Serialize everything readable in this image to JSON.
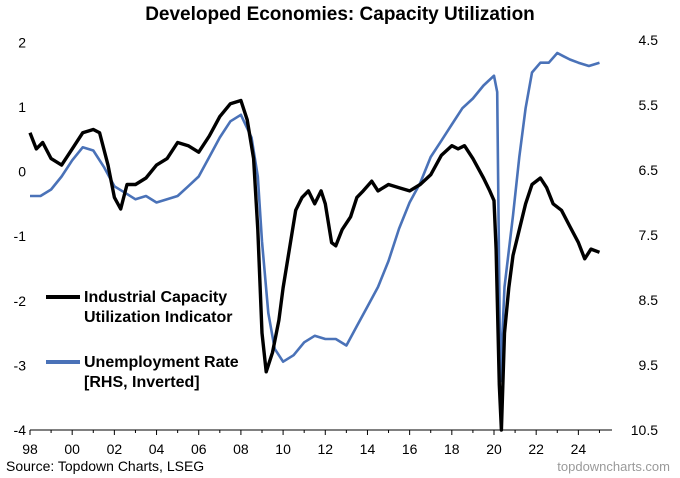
{
  "chart_data": {
    "type": "line",
    "title": "Developed Economies: Capacity Utilization",
    "source": "Source: Topdown Charts, LSEG",
    "watermark": "topdowncharts.com",
    "x_ticks": [
      "98",
      "00",
      "02",
      "04",
      "06",
      "08",
      "10",
      "12",
      "14",
      "16",
      "18",
      "20",
      "22",
      "24"
    ],
    "x_range": [
      1998.0,
      2025.5
    ],
    "y_left_ticks": [
      "2",
      "1",
      "0",
      "-1",
      "-2",
      "-3",
      "-4"
    ],
    "y_left_range": [
      -4,
      2.5
    ],
    "y_right_ticks": [
      "4.5",
      "5.5",
      "6.5",
      "7.5",
      "8.5",
      "9.5",
      "10.5"
    ],
    "y_right_range": [
      4.5,
      10.5
    ],
    "y_right_inverted": true,
    "grid": false,
    "legend_placement": "left",
    "series": [
      {
        "name": "Industrial Capacity Utilization Indicator",
        "name_lines": [
          "Industrial Capacity",
          "Utilization Indicator"
        ],
        "axis": "left",
        "color": "#000000",
        "points": [
          [
            1998.0,
            0.6
          ],
          [
            1998.3,
            0.35
          ],
          [
            1998.6,
            0.45
          ],
          [
            1999.0,
            0.2
          ],
          [
            1999.5,
            0.1
          ],
          [
            2000.0,
            0.35
          ],
          [
            2000.5,
            0.6
          ],
          [
            2001.0,
            0.65
          ],
          [
            2001.3,
            0.6
          ],
          [
            2001.7,
            0.1
          ],
          [
            2002.0,
            -0.4
          ],
          [
            2002.3,
            -0.58
          ],
          [
            2002.6,
            -0.2
          ],
          [
            2003.0,
            -0.2
          ],
          [
            2003.5,
            -0.1
          ],
          [
            2004.0,
            0.1
          ],
          [
            2004.5,
            0.2
          ],
          [
            2005.0,
            0.45
          ],
          [
            2005.5,
            0.4
          ],
          [
            2006.0,
            0.3
          ],
          [
            2006.5,
            0.55
          ],
          [
            2007.0,
            0.85
          ],
          [
            2007.5,
            1.05
          ],
          [
            2008.0,
            1.1
          ],
          [
            2008.3,
            0.8
          ],
          [
            2008.6,
            0.2
          ],
          [
            2008.8,
            -0.9
          ],
          [
            2009.0,
            -2.5
          ],
          [
            2009.2,
            -3.1
          ],
          [
            2009.5,
            -2.8
          ],
          [
            2009.8,
            -2.3
          ],
          [
            2010.0,
            -1.8
          ],
          [
            2010.3,
            -1.2
          ],
          [
            2010.6,
            -0.6
          ],
          [
            2010.9,
            -0.4
          ],
          [
            2011.2,
            -0.3
          ],
          [
            2011.5,
            -0.5
          ],
          [
            2011.8,
            -0.3
          ],
          [
            2012.0,
            -0.5
          ],
          [
            2012.3,
            -1.1
          ],
          [
            2012.5,
            -1.15
          ],
          [
            2012.8,
            -0.9
          ],
          [
            2013.2,
            -0.7
          ],
          [
            2013.5,
            -0.4
          ],
          [
            2013.8,
            -0.3
          ],
          [
            2014.2,
            -0.15
          ],
          [
            2014.5,
            -0.3
          ],
          [
            2015.0,
            -0.2
          ],
          [
            2015.5,
            -0.25
          ],
          [
            2016.0,
            -0.3
          ],
          [
            2016.5,
            -0.2
          ],
          [
            2017.0,
            -0.05
          ],
          [
            2017.5,
            0.25
          ],
          [
            2018.0,
            0.4
          ],
          [
            2018.3,
            0.35
          ],
          [
            2018.6,
            0.4
          ],
          [
            2019.0,
            0.2
          ],
          [
            2019.5,
            -0.1
          ],
          [
            2019.8,
            -0.3
          ],
          [
            2020.0,
            -0.45
          ],
          [
            2020.1,
            -1.2
          ],
          [
            2020.25,
            -3.3
          ],
          [
            2020.35,
            -4.0
          ],
          [
            2020.5,
            -2.5
          ],
          [
            2020.7,
            -1.8
          ],
          [
            2020.9,
            -1.3
          ],
          [
            2021.2,
            -0.9
          ],
          [
            2021.5,
            -0.5
          ],
          [
            2021.8,
            -0.2
          ],
          [
            2022.2,
            -0.1
          ],
          [
            2022.5,
            -0.25
          ],
          [
            2022.8,
            -0.5
          ],
          [
            2023.2,
            -0.6
          ],
          [
            2023.6,
            -0.85
          ],
          [
            2024.0,
            -1.1
          ],
          [
            2024.3,
            -1.35
          ],
          [
            2024.6,
            -1.2
          ],
          [
            2025.0,
            -1.25
          ]
        ]
      },
      {
        "name": "Unemployment Rate [RHS, Inverted]",
        "name_lines": [
          "Unemployment Rate",
          "[RHS, Inverted]"
        ],
        "axis": "right",
        "color": "#4a72b8",
        "points": [
          [
            1998.0,
            6.9
          ],
          [
            1998.5,
            6.9
          ],
          [
            1999.0,
            6.8
          ],
          [
            1999.5,
            6.6
          ],
          [
            2000.0,
            6.35
          ],
          [
            2000.5,
            6.15
          ],
          [
            2001.0,
            6.2
          ],
          [
            2001.5,
            6.45
          ],
          [
            2002.0,
            6.75
          ],
          [
            2002.5,
            6.85
          ],
          [
            2003.0,
            6.95
          ],
          [
            2003.5,
            6.9
          ],
          [
            2004.0,
            7.0
          ],
          [
            2004.5,
            6.95
          ],
          [
            2005.0,
            6.9
          ],
          [
            2005.5,
            6.75
          ],
          [
            2006.0,
            6.6
          ],
          [
            2006.5,
            6.3
          ],
          [
            2007.0,
            6.0
          ],
          [
            2007.5,
            5.75
          ],
          [
            2008.0,
            5.65
          ],
          [
            2008.5,
            6.0
          ],
          [
            2008.8,
            6.6
          ],
          [
            2009.0,
            7.6
          ],
          [
            2009.3,
            8.7
          ],
          [
            2009.6,
            9.25
          ],
          [
            2010.0,
            9.45
          ],
          [
            2010.5,
            9.35
          ],
          [
            2011.0,
            9.15
          ],
          [
            2011.5,
            9.05
          ],
          [
            2012.0,
            9.1
          ],
          [
            2012.5,
            9.1
          ],
          [
            2013.0,
            9.2
          ],
          [
            2013.5,
            8.9
          ],
          [
            2014.0,
            8.6
          ],
          [
            2014.5,
            8.3
          ],
          [
            2015.0,
            7.9
          ],
          [
            2015.5,
            7.4
          ],
          [
            2016.0,
            7.0
          ],
          [
            2016.5,
            6.7
          ],
          [
            2017.0,
            6.3
          ],
          [
            2017.5,
            6.05
          ],
          [
            2018.0,
            5.8
          ],
          [
            2018.5,
            5.55
          ],
          [
            2019.0,
            5.4
          ],
          [
            2019.5,
            5.2
          ],
          [
            2020.0,
            5.05
          ],
          [
            2020.15,
            5.3
          ],
          [
            2020.3,
            9.75
          ],
          [
            2020.5,
            8.3
          ],
          [
            2020.9,
            7.2
          ],
          [
            2021.2,
            6.3
          ],
          [
            2021.5,
            5.55
          ],
          [
            2021.8,
            5.0
          ],
          [
            2022.2,
            4.85
          ],
          [
            2022.6,
            4.85
          ],
          [
            2023.0,
            4.7
          ],
          [
            2023.3,
            4.75
          ],
          [
            2023.6,
            4.8
          ],
          [
            2024.0,
            4.85
          ],
          [
            2024.5,
            4.9
          ],
          [
            2025.0,
            4.85
          ]
        ]
      }
    ]
  }
}
